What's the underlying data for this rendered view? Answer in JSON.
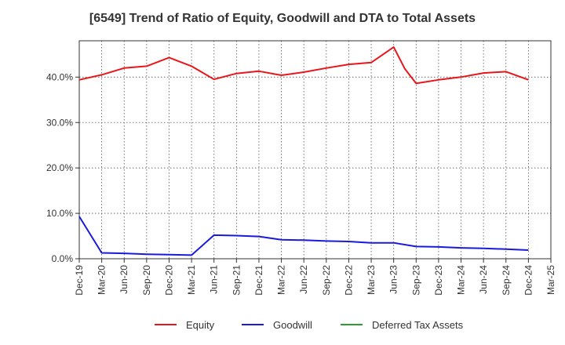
{
  "chart_data": {
    "type": "line",
    "title": "[6549]  Trend of Ratio of Equity, Goodwill and DTA to Total Assets",
    "xlabel": "",
    "ylabel": "",
    "ylim": [
      0,
      48
    ],
    "yticks": [
      0,
      10,
      20,
      30,
      40
    ],
    "ytick_labels": [
      "0.0%",
      "10.0%",
      "20.0%",
      "30.0%",
      "40.0%"
    ],
    "categories": [
      "Dec-19",
      "Mar-20",
      "Jun-20",
      "Sep-20",
      "Dec-20",
      "Mar-21",
      "Jun-21",
      "Sep-21",
      "Dec-21",
      "Mar-22",
      "Jun-22",
      "Sep-22",
      "Dec-22",
      "Mar-23",
      "Jun-23",
      "Sep-23",
      "Dec-23",
      "Mar-24",
      "Jun-24",
      "Sep-24",
      "Dec-24",
      "Mar-25"
    ],
    "grid": true,
    "legend_position": "bottom",
    "series": [
      {
        "name": "Equity",
        "color": "#e8161b",
        "points": [
          [
            0,
            39.4
          ],
          [
            1,
            40.5
          ],
          [
            2,
            42.0
          ],
          [
            3,
            42.4
          ],
          [
            4,
            44.3
          ],
          [
            5,
            42.4
          ],
          [
            6,
            39.5
          ],
          [
            7,
            40.8
          ],
          [
            8,
            41.3
          ],
          [
            9,
            40.4
          ],
          [
            10,
            41.1
          ],
          [
            11,
            42.0
          ],
          [
            12,
            42.8
          ],
          [
            13,
            43.2
          ],
          [
            14,
            46.6
          ],
          [
            14.5,
            41.8
          ],
          [
            15,
            38.6
          ],
          [
            16,
            39.4
          ],
          [
            17,
            40.0
          ],
          [
            18,
            40.9
          ],
          [
            19,
            41.2
          ],
          [
            20,
            39.4
          ]
        ]
      },
      {
        "name": "Goodwill",
        "color": "#1a1adb",
        "points": [
          [
            0,
            9.3
          ],
          [
            1,
            1.3
          ],
          [
            2,
            1.2
          ],
          [
            3,
            1.0
          ],
          [
            4,
            0.9
          ],
          [
            5,
            0.8
          ],
          [
            6,
            5.2
          ],
          [
            7,
            5.1
          ],
          [
            8,
            4.9
          ],
          [
            9,
            4.2
          ],
          [
            10,
            4.1
          ],
          [
            11,
            3.9
          ],
          [
            12,
            3.8
          ],
          [
            13,
            3.5
          ],
          [
            14,
            3.5
          ],
          [
            15,
            2.7
          ],
          [
            16,
            2.6
          ],
          [
            17,
            2.4
          ],
          [
            18,
            2.3
          ],
          [
            19,
            2.1
          ],
          [
            20,
            1.9
          ]
        ]
      },
      {
        "name": "Deferred Tax Assets",
        "color": "#2ca02c",
        "points": []
      }
    ]
  }
}
